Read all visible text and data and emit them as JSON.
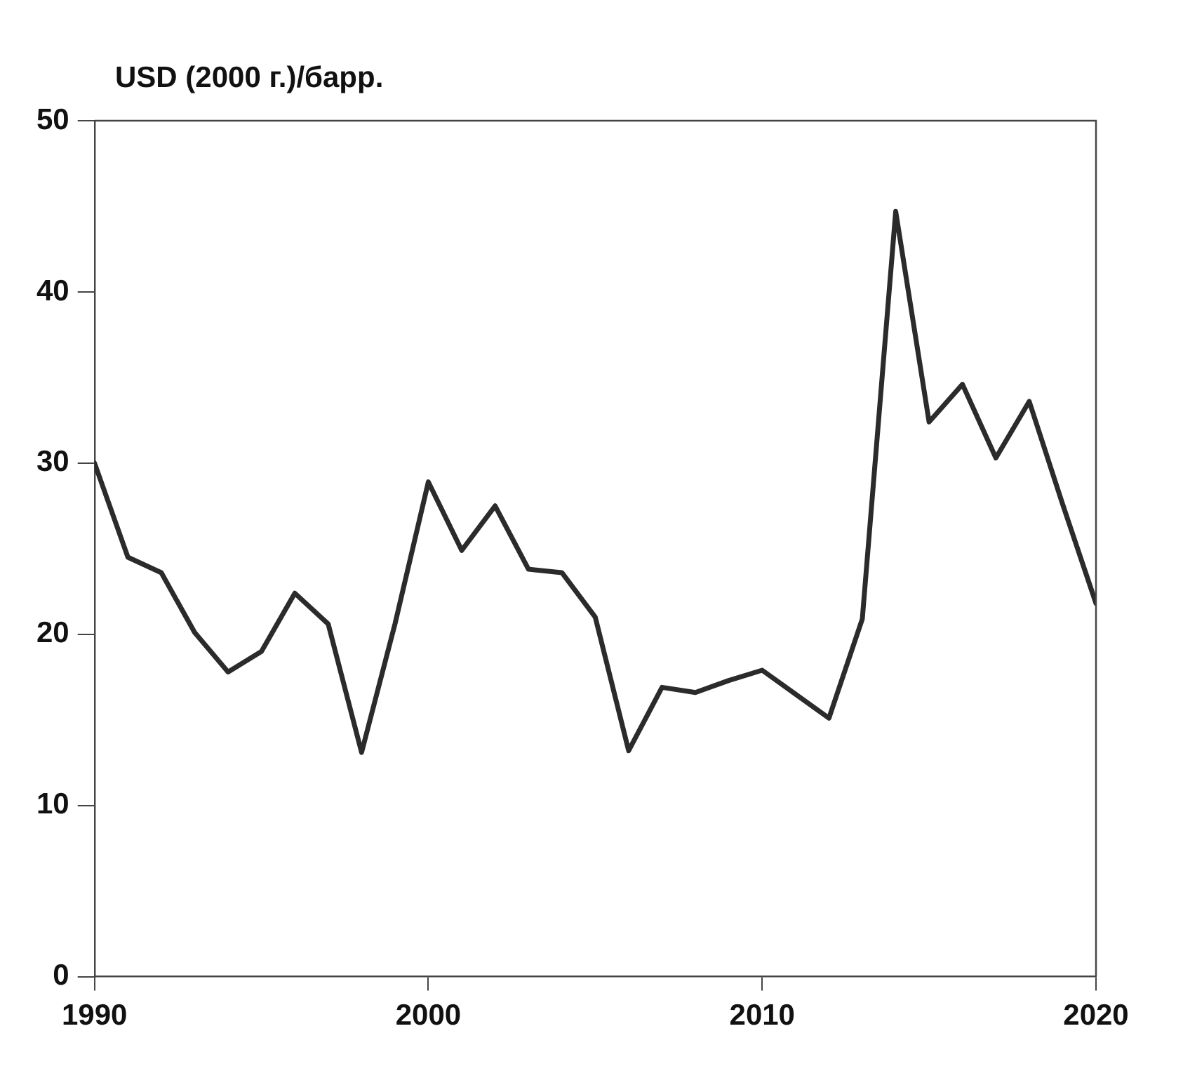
{
  "chart_data": {
    "type": "line",
    "ylabel": "USD (2000 г.)/барр.",
    "x": [
      1990,
      1991,
      1992,
      1993,
      1994,
      1995,
      1996,
      1997,
      1998,
      1999,
      2000,
      2001,
      2002,
      2003,
      2004,
      2005,
      2006,
      2007,
      2008,
      2009,
      2010,
      2011,
      2012,
      2013,
      2014,
      2015,
      2016,
      2017,
      2018,
      2019,
      2020
    ],
    "series": [
      {
        "color": "#2b2b2b",
        "values": [
          30.0,
          24.5,
          23.6,
          20.1,
          17.8,
          19.0,
          22.4,
          20.6,
          13.1,
          20.6,
          28.9,
          24.9,
          27.5,
          23.8,
          23.6,
          21.0,
          13.2,
          16.9,
          16.6,
          17.3,
          17.9,
          16.5,
          15.1,
          20.9,
          44.7,
          32.4,
          34.6,
          30.3,
          33.6,
          27.6,
          21.8
        ]
      }
    ],
    "xlim": [
      1990,
      2020
    ],
    "xticks": [
      1990,
      2000,
      2010,
      2020
    ],
    "ylim": [
      0,
      50
    ],
    "yticks": [
      0,
      10,
      20,
      30,
      40,
      50
    ],
    "grid": false,
    "legend": false,
    "marker": "none",
    "line_style": "solid"
  }
}
